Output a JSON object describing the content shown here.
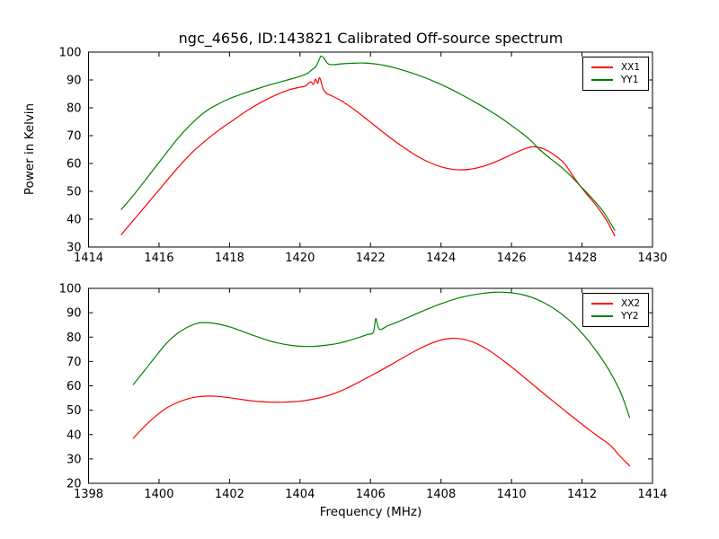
{
  "figure": {
    "background": "#ffffff",
    "frame_color": "#000000",
    "title": "ngc_4656, ID:143821 Calibrated Off-source spectrum"
  },
  "colors": {
    "xx_line": "#ff0000",
    "yy_line": "#008000",
    "axis": "#000000"
  },
  "chart_data": [
    {
      "type": "line",
      "title": "ngc_4656, ID:143821 Calibrated Off-source spectrum",
      "xlabel": "",
      "ylabel": "Power in Kelvin",
      "xlim": [
        1414,
        1430
      ],
      "ylim": [
        30,
        100
      ],
      "xticks": [
        1414,
        1416,
        1418,
        1420,
        1422,
        1424,
        1426,
        1428,
        1430
      ],
      "yticks": [
        30,
        40,
        50,
        60,
        70,
        80,
        90,
        100
      ],
      "grid": false,
      "legend_position": "upper right",
      "series": [
        {
          "name": "XX1",
          "color": "#ff0000",
          "x": [
            1414.93,
            1415.3,
            1415.7,
            1416.1,
            1416.5,
            1416.9,
            1417.3,
            1417.7,
            1418.1,
            1418.5,
            1418.9,
            1419.3,
            1419.7,
            1420.0,
            1420.15,
            1420.3,
            1420.38,
            1420.44,
            1420.5,
            1420.56,
            1420.65,
            1420.75,
            1420.9,
            1421.2,
            1421.6,
            1422.0,
            1422.4,
            1422.8,
            1423.2,
            1423.6,
            1424.0,
            1424.4,
            1424.8,
            1425.2,
            1425.6,
            1426.0,
            1426.3,
            1426.6,
            1426.9,
            1427.2,
            1427.5,
            1427.8,
            1428.1,
            1428.4,
            1428.7,
            1428.93
          ],
          "y": [
            34.5,
            40,
            46,
            52,
            58,
            63.5,
            68,
            72,
            75.5,
            79,
            82,
            84.5,
            86.5,
            87.4,
            87.8,
            89.3,
            88.4,
            90.3,
            88.8,
            90.8,
            87.0,
            85.2,
            84.3,
            82.3,
            78.8,
            74.8,
            70.8,
            67.0,
            63.6,
            60.8,
            58.8,
            57.8,
            57.9,
            59.0,
            60.9,
            63.2,
            64.9,
            66.0,
            65.3,
            63.2,
            60.0,
            54.5,
            49.5,
            45.0,
            39.5,
            34.0
          ]
        },
        {
          "name": "YY1",
          "color": "#008000",
          "x": [
            1414.93,
            1415.3,
            1415.7,
            1416.1,
            1416.5,
            1416.9,
            1417.3,
            1417.7,
            1418.1,
            1418.5,
            1418.9,
            1419.3,
            1419.7,
            1420.0,
            1420.2,
            1420.35,
            1420.45,
            1420.55,
            1420.6,
            1420.68,
            1420.78,
            1420.9,
            1421.2,
            1421.5,
            1421.8,
            1422.1,
            1422.4,
            1422.7,
            1423.0,
            1423.4,
            1423.8,
            1424.2,
            1424.6,
            1425.0,
            1425.4,
            1425.8,
            1426.2,
            1426.5,
            1426.8,
            1427.1,
            1427.4,
            1427.7,
            1428.0,
            1428.3,
            1428.6,
            1428.93
          ],
          "y": [
            43.5,
            49,
            55.5,
            62,
            68.5,
            74,
            78.5,
            81.5,
            83.8,
            85.6,
            87.3,
            88.8,
            90.2,
            91.3,
            92.3,
            93.8,
            94.8,
            97.5,
            98.6,
            97.8,
            96.0,
            95.5,
            95.8,
            96.0,
            96.1,
            95.8,
            95.2,
            94.3,
            93.2,
            91.5,
            89.5,
            87.2,
            84.6,
            81.8,
            78.8,
            75.5,
            71.8,
            68.8,
            65.0,
            61.8,
            58.8,
            55.3,
            51.3,
            47.3,
            42.8,
            36.0
          ]
        }
      ]
    },
    {
      "type": "line",
      "title": "",
      "xlabel": "Frequency (MHz)",
      "ylabel": "",
      "xlim": [
        1398,
        1414
      ],
      "ylim": [
        20,
        100
      ],
      "xticks": [
        1398,
        1400,
        1402,
        1404,
        1406,
        1408,
        1410,
        1412,
        1414
      ],
      "yticks": [
        20,
        30,
        40,
        50,
        60,
        70,
        80,
        90,
        100
      ],
      "grid": false,
      "legend_position": "upper right",
      "series": [
        {
          "name": "XX2",
          "color": "#ff0000",
          "x": [
            1399.27,
            1399.6,
            1399.9,
            1400.2,
            1400.5,
            1400.8,
            1401.1,
            1401.4,
            1401.7,
            1402.0,
            1402.3,
            1402.6,
            1402.9,
            1403.2,
            1403.5,
            1403.8,
            1404.1,
            1404.4,
            1404.7,
            1405.0,
            1405.3,
            1405.6,
            1405.9,
            1406.2,
            1406.5,
            1406.8,
            1407.1,
            1407.4,
            1407.7,
            1408.0,
            1408.3,
            1408.6,
            1408.9,
            1409.2,
            1409.5,
            1409.8,
            1410.1,
            1410.4,
            1410.7,
            1411.0,
            1411.3,
            1411.6,
            1411.9,
            1412.2,
            1412.5,
            1412.8,
            1413.1,
            1413.35
          ],
          "y": [
            38.5,
            43.5,
            47.5,
            50.8,
            53.0,
            54.6,
            55.5,
            55.8,
            55.6,
            55.1,
            54.5,
            53.9,
            53.5,
            53.3,
            53.3,
            53.5,
            53.9,
            54.6,
            55.6,
            57.0,
            58.8,
            61.0,
            63.3,
            65.6,
            68.0,
            70.5,
            73.0,
            75.3,
            77.3,
            78.8,
            79.5,
            79.2,
            78.0,
            75.9,
            73.2,
            70.0,
            66.6,
            63.0,
            59.4,
            55.8,
            52.3,
            48.8,
            45.4,
            42.0,
            38.8,
            35.6,
            30.8,
            27.2
          ]
        },
        {
          "name": "YY2",
          "color": "#008000",
          "x": [
            1399.27,
            1399.6,
            1399.9,
            1400.2,
            1400.5,
            1400.8,
            1401.1,
            1401.4,
            1401.7,
            1402.0,
            1402.3,
            1402.6,
            1402.9,
            1403.2,
            1403.5,
            1403.8,
            1404.1,
            1404.4,
            1404.7,
            1405.0,
            1405.3,
            1405.6,
            1405.9,
            1406.08,
            1406.15,
            1406.25,
            1406.5,
            1406.8,
            1407.1,
            1407.4,
            1407.7,
            1408.0,
            1408.3,
            1408.6,
            1408.9,
            1409.2,
            1409.5,
            1409.8,
            1410.1,
            1410.4,
            1410.7,
            1411.0,
            1411.3,
            1411.6,
            1411.9,
            1412.2,
            1412.5,
            1412.8,
            1413.1,
            1413.35
          ],
          "y": [
            60.5,
            66.5,
            72,
            77.3,
            81.3,
            84.0,
            85.7,
            85.9,
            85.3,
            84.2,
            82.7,
            81.1,
            79.6,
            78.2,
            77.2,
            76.5,
            76.2,
            76.2,
            76.6,
            77.2,
            78.2,
            79.5,
            81.0,
            82.0,
            87.6,
            83.2,
            84.7,
            86.4,
            88.3,
            90.2,
            92.0,
            93.7,
            95.2,
            96.4,
            97.3,
            98.0,
            98.4,
            98.4,
            98.0,
            97.1,
            95.6,
            93.5,
            90.8,
            87.4,
            83.2,
            78.2,
            72.4,
            65.6,
            57.2,
            47.0
          ]
        }
      ]
    }
  ]
}
